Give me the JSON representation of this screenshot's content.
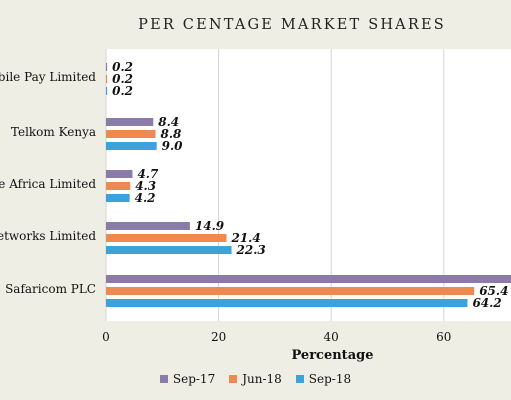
{
  "chart_data": {
    "type": "bar",
    "orientation": "horizontal",
    "title": "PER CENTAGE MARKET SHARES",
    "xlabel": "Percentage",
    "ylabel": "",
    "xlim": [
      0,
      72
    ],
    "xticks": [
      "0",
      "20",
      "40",
      "60"
    ],
    "grid": "vertical",
    "legend_position": "bottom",
    "categories": [
      "Mobile Pay Limited",
      "Telkom Kenya",
      "Airtel Networks Kenya Limited / Finserve Africa Limited",
      "Airtel Networks Limited",
      "Safaricom PLC"
    ],
    "category_labels": [
      "obile Pay Limited",
      "Telkom Kenya",
      "ve Africa Limited",
      "Networks Limited",
      "Safaricom PLC"
    ],
    "series": [
      {
        "name": "Sep-17",
        "color": "#8b7ba8",
        "values": [
          0.2,
          8.4,
          4.7,
          14.9,
          72.0
        ],
        "labels": [
          "0.2",
          "8.4",
          "4.7",
          "14.9",
          ""
        ]
      },
      {
        "name": "Jun-18",
        "color": "#ee8a4f",
        "values": [
          0.2,
          8.8,
          4.3,
          21.4,
          65.4
        ],
        "labels": [
          "0.2",
          "8.8",
          "4.3",
          "21.4",
          "65.4"
        ]
      },
      {
        "name": "Sep-18",
        "color": "#3ba2dc",
        "values": [
          0.2,
          9.0,
          4.2,
          22.3,
          64.2
        ],
        "labels": [
          "0.2",
          "9.0",
          "4.2",
          "22.3",
          "64.2"
        ]
      }
    ]
  }
}
